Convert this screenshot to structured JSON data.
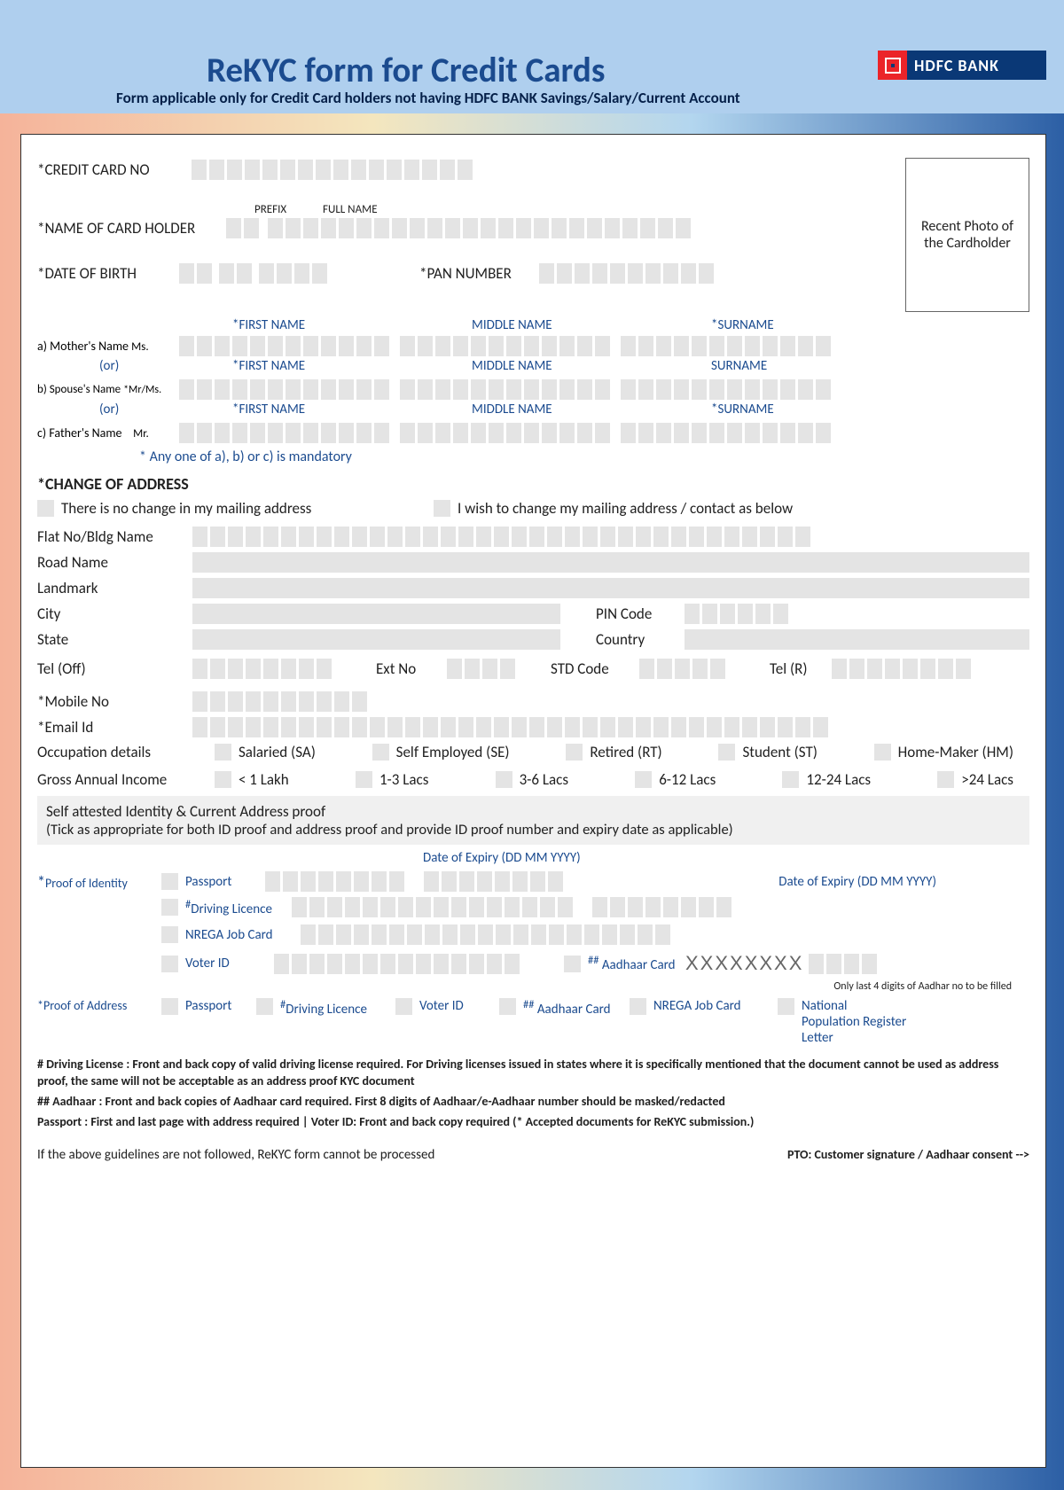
{
  "header": {
    "title": "ReKYC form for Credit Cards",
    "subtitle": "Form applicable only for Credit Card holders not having HDFC BANK Savings/Salary/Current Account",
    "bank_name": "HDFC BANK"
  },
  "colors": {
    "brand_blue": "#1b4b8f",
    "brand_red": "#eb2429",
    "header_bg": "#afcfee",
    "cell_bg": "#e4e4e4",
    "dark_blue": "#0a3876"
  },
  "labels": {
    "cc_no": "*CREDIT CARD NO",
    "prefix": "PREFIX",
    "full_name": "FULL NAME",
    "name_holder": "*NAME OF CARD HOLDER",
    "dob": "*DATE OF BIRTH",
    "pan": "*PAN NUMBER",
    "photo": "Recent Photo of the Cardholder",
    "first_name": "*FIRST NAME",
    "middle_name": "MIDDLE NAME",
    "surname_req": "*SURNAME",
    "surname": "SURNAME",
    "mother": "a) Mother's Name",
    "ms": "Ms.",
    "or": "(or)",
    "spouse": "b) Spouse's Name",
    "mrms": "*Mr/Ms.",
    "father": "c) Father's Name",
    "mr": "Mr.",
    "any_one": "* Any one of a), b) or c) is mandatory",
    "change_addr": "*CHANGE OF ADDRESS",
    "no_change": "There is no change in my mailing address",
    "wish_change": "I wish to change my mailing address / contact as below",
    "flat": "Flat No/Bldg Name",
    "road": "Road Name",
    "landmark": "Landmark",
    "city": "City",
    "pin": "PIN Code",
    "state": "State",
    "country": "Country",
    "tel_off": "Tel (Off)",
    "ext": "Ext No",
    "std": "STD Code",
    "tel_r": "Tel (R)",
    "mobile": "*Mobile No",
    "email": "*Email Id",
    "occupation": "Occupation details",
    "income": "Gross Annual Income",
    "attest_title": "Self attested Identity & Current Address proof",
    "attest_sub": "(Tick as appropriate for both ID proof and address proof and provide ID proof number and expiry date as applicable)",
    "proof_id": "Proof of Identity",
    "proof_addr": "*Proof of Address",
    "passport": "Passport",
    "dl": "Driving Licence",
    "nrega": "NREGA Job Card",
    "voter": "Voter ID",
    "aadhaar": "Aadhaar Card",
    "expiry": "Date of Expiry (DD MM YYYY)",
    "aadhar_note": "Only last 4 digits of Aadhar no to be filled",
    "npr": "National Population Register Letter",
    "aadhar_mask": "XXXXXXXX"
  },
  "occupations": [
    "Salaried  (SA)",
    "Self  Employed  (SE)",
    "Retired  (RT)",
    "Student  (ST)",
    "Home-Maker  (HM)"
  ],
  "incomes": [
    "< 1 Lakh",
    "1-3 Lacs",
    "3-6 Lacs",
    "6-12 Lacs",
    "12-24 Lacs",
    ">24 Lacs"
  ],
  "footnotes": {
    "dl": "# Driving License :  Front and back copy of valid driving license required. For Driving licenses issued in states where it is specifically mentioned that the document cannot be used as address proof, the same will not be acceptable as an address proof KYC document",
    "aadhaar": "## Aadhaar :  Front and back copies of Aadhaar card required. First 8 digits of Aadhaar/e-Aadhaar number should be masked/redacted",
    "passport_voter": "Passport :  First and last page with address required    |    Voter ID: Front and back copy required (* Accepted documents for ReKYC submission.)",
    "not_followed": "If the above guidelines are not followed, ReKYC form cannot be processed",
    "pto": "PTO: Customer signature / Aadhaar consent -->"
  },
  "box_counts": {
    "cc": 16,
    "prefix": 2,
    "name": 24,
    "dob": [
      2,
      2,
      4
    ],
    "pan": 10,
    "name_row": [
      12,
      12,
      12
    ],
    "addr_wide": 35,
    "city": 20,
    "pin": 6,
    "state": 20,
    "country": 14,
    "tel_off": 8,
    "ext": 4,
    "std": 5,
    "tel_r": 8,
    "mobile": 10,
    "email": 36,
    "passport_no": 8,
    "expiry": 8,
    "dl_no": 16,
    "nrega_no": 21,
    "voter_no": 14,
    "aadhar_last": 4
  }
}
